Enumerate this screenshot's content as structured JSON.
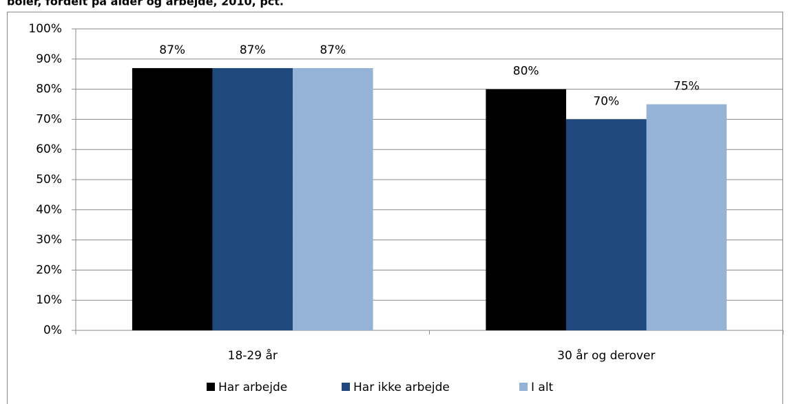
{
  "chart_data": {
    "type": "bar",
    "title": "boler, fordelt på alder og arbejde, 2010, pct.",
    "categories": [
      "18-29 år",
      "30 år og derover"
    ],
    "series": [
      {
        "name": "Har arbejde",
        "color": "#000000",
        "values": [
          87,
          80
        ],
        "value_labels": [
          "87%",
          "80%"
        ]
      },
      {
        "name": "Har ikke arbejde",
        "color": "#1f497d",
        "values": [
          87,
          70
        ],
        "value_labels": [
          "87%",
          "70%"
        ]
      },
      {
        "name": "I alt",
        "color": "#95b3d7",
        "values": [
          87,
          75
        ],
        "value_labels": [
          "87%",
          "75%"
        ]
      }
    ],
    "ylim": [
      0,
      100
    ],
    "yticks": [
      {
        "value": 0,
        "label": "0%"
      },
      {
        "value": 10,
        "label": "10%"
      },
      {
        "value": 20,
        "label": "20%"
      },
      {
        "value": 30,
        "label": "30%"
      },
      {
        "value": 40,
        "label": "40%"
      },
      {
        "value": 50,
        "label": "50%"
      },
      {
        "value": 60,
        "label": "60%"
      },
      {
        "value": 70,
        "label": "70%"
      },
      {
        "value": 80,
        "label": "80%"
      },
      {
        "value": 90,
        "label": "90%"
      },
      {
        "value": 100,
        "label": "100%"
      }
    ],
    "grid": true,
    "legend": "bottom"
  }
}
